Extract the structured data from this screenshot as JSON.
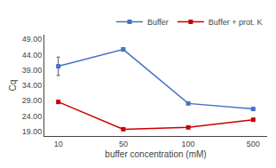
{
  "chart_data": {
    "type": "line",
    "categories": [
      "10",
      "50",
      "100",
      "500"
    ],
    "xlabel": "buffer concentration (mM)",
    "ylabel": "Cq",
    "series": [
      {
        "name": "Buffer",
        "color": "#4472C4",
        "marker": "square",
        "values": [
          40.2,
          45.7,
          28.1,
          26.3
        ],
        "yerr_up": [
          3.0,
          0.6,
          0.25,
          0.0
        ],
        "yerr_down": [
          3.0,
          0.6,
          0.0,
          0.0
        ]
      },
      {
        "name": "Buffer + prot. K",
        "color": "#CC0000",
        "marker": "square",
        "values": [
          28.6,
          19.7,
          20.3,
          22.8
        ]
      }
    ],
    "ylim": [
      17.5,
      50.5
    ],
    "yticks": [
      {
        "value": 19.0,
        "label": "19.00"
      },
      {
        "value": 24.0,
        "label": "24.00"
      },
      {
        "value": 29.0,
        "label": "29.00"
      },
      {
        "value": 34.0,
        "label": "34.00"
      },
      {
        "value": 39.0,
        "label": "39.00"
      },
      {
        "value": 44.0,
        "label": "44.00"
      },
      {
        "value": 49.0,
        "label": "49.00"
      }
    ],
    "grid": false,
    "legend": "upper right"
  }
}
